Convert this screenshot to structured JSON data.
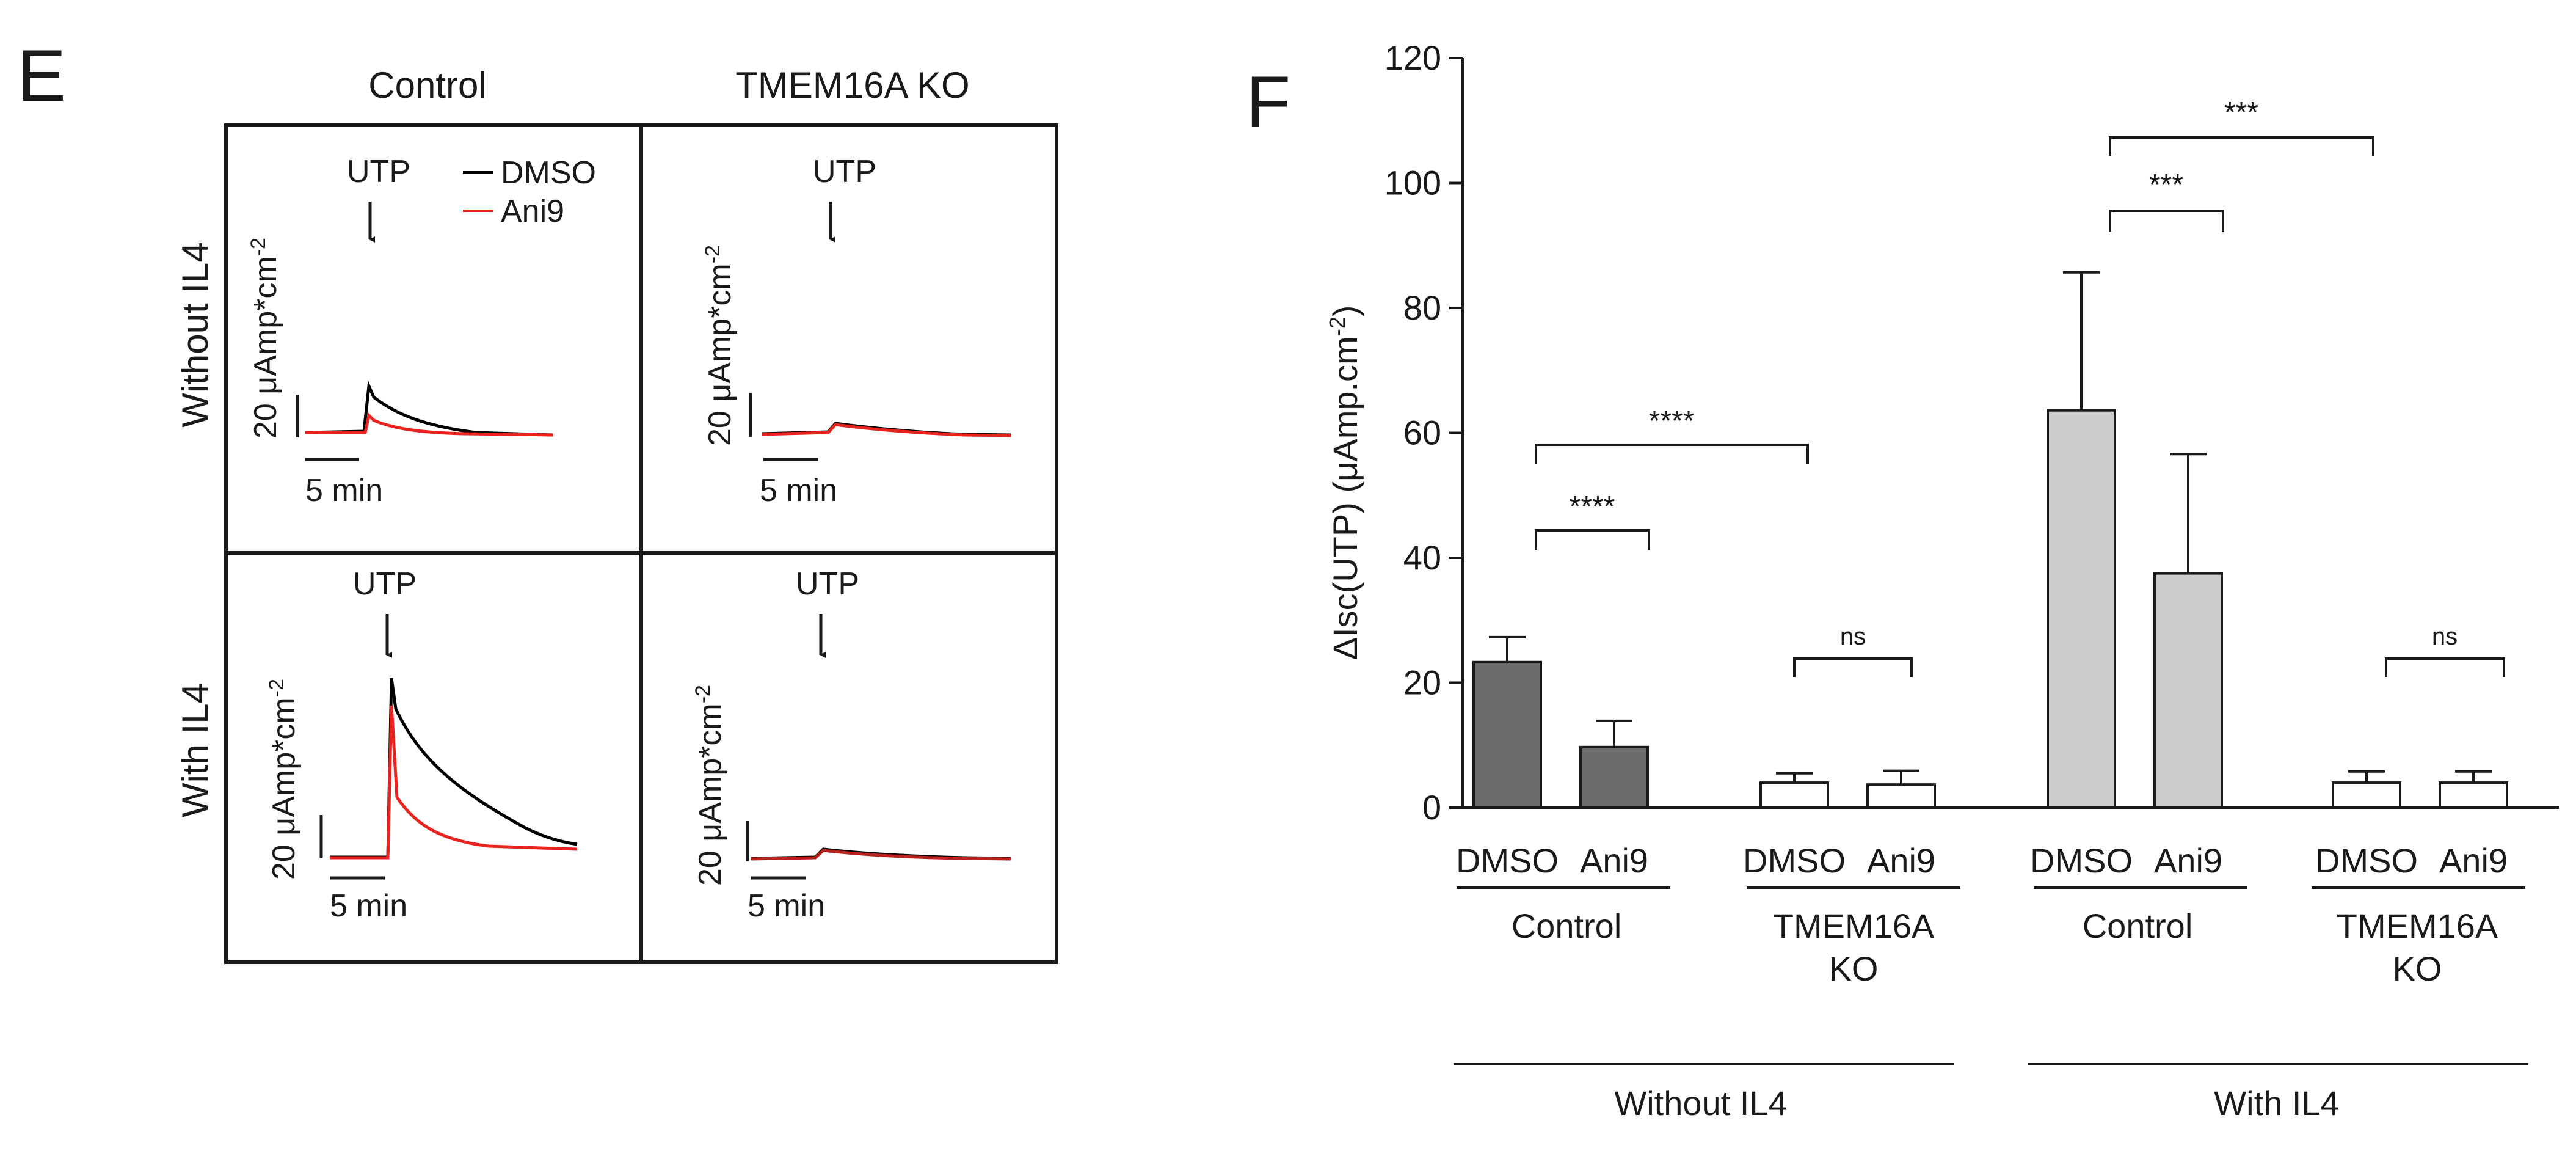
{
  "panel_e": {
    "letter": "E",
    "col_labels": [
      "Control",
      "TMEM16A KO"
    ],
    "row_labels": [
      "Without IL4",
      "With IL4"
    ],
    "stimulus": "UTP",
    "legend": [
      {
        "name": "DMSO",
        "color": "#000000"
      },
      {
        "name": "Ani9",
        "color": "#e8231f"
      }
    ],
    "scale_y": "20 μAmp*cm",
    "scale_y_sup": "-2",
    "scale_x": "5 min"
  },
  "panel_f": {
    "letter": "F",
    "group_labels": [
      {
        "line1": "Control",
        "line2": ""
      },
      {
        "line1": "TMEM16A",
        "line2": "KO"
      },
      {
        "line1": "Control",
        "line2": ""
      },
      {
        "line1": "TMEM16A",
        "line2": "KO"
      }
    ],
    "condition_labels": [
      "Without IL4",
      "With IL4"
    ],
    "significance": [
      "****",
      "****",
      "ns",
      "***",
      "***",
      "ns"
    ]
  },
  "chart_data": {
    "type": "bar",
    "title": "",
    "xlabel": "",
    "ylabel": "ΔIsc(UTP) (μAmp.cm",
    "ylabel_sup": "-2",
    "ylabel_end": ")",
    "ylim": [
      0,
      120
    ],
    "yticks": [
      0,
      20,
      40,
      60,
      80,
      100,
      120
    ],
    "categories": [
      "DMSO",
      "Ani9",
      "DMSO",
      "Ani9",
      "DMSO",
      "Ani9",
      "DMSO",
      "Ani9"
    ],
    "values": [
      23.3,
      9.7,
      4.0,
      3.7,
      63.6,
      37.5,
      4.0,
      4.0
    ],
    "errors": [
      4.0,
      4.2,
      1.5,
      2.2,
      22.1,
      19.1,
      1.8,
      1.8
    ],
    "fills": [
      "#6b6b6b",
      "#6b6b6b",
      "#ffffff",
      "#ffffff",
      "#cccccc",
      "#cccccc",
      "#ffffff",
      "#ffffff"
    ]
  }
}
